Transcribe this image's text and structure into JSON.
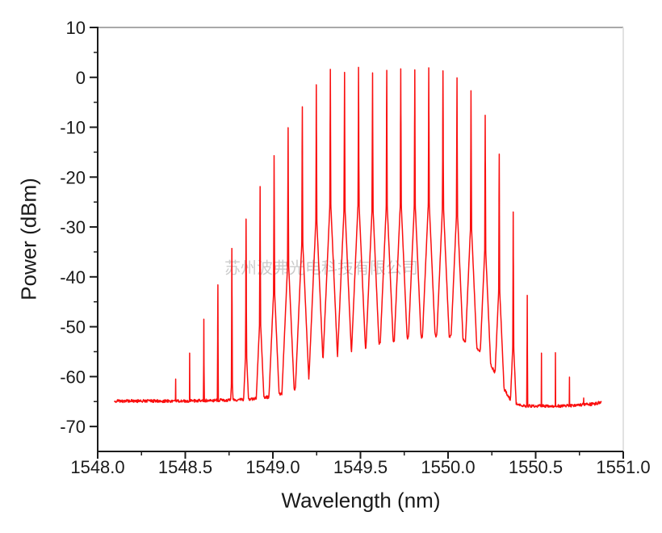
{
  "watermark": {
    "text": "苏州波弗光电科技有限公司",
    "color": "#c7c7c7"
  },
  "chart_data": {
    "type": "line",
    "title": "",
    "xlabel": "Wavelength (nm)",
    "ylabel": "Power (dBm)",
    "xlim": [
      1548.0,
      1551.0
    ],
    "ylim": [
      -75,
      10
    ],
    "x_ticks": [
      "1548.0",
      "1548.5",
      "1549.0",
      "1549.5",
      "1550.0",
      "1550.5",
      "1551.0"
    ],
    "x_minor_ticks": [
      1548.25,
      1548.75,
      1549.25,
      1549.75,
      1550.25,
      1550.75
    ],
    "y_ticks": [
      "10",
      "0",
      "-10",
      "-20",
      "-30",
      "-40",
      "-50",
      "-60",
      "-70"
    ],
    "y_minor_ticks": [
      5,
      -5,
      -15,
      -25,
      -35,
      -45,
      -55,
      -65
    ],
    "grid": false,
    "legend": false,
    "line_color": "#fa0f0f",
    "axis_color": "#1c1c1c",
    "top_border_color": "#a9a9a9",
    "right_border_color": "#e2e2e2",
    "series_description": "10 GHz optical frequency comb: ~30 narrow lines (0.08 nm spacing) rising out of an ASE pedestal over a -65 dBm noise floor",
    "comb_spacing_nm": 0.0803,
    "comb_lines": [
      [
        1548.445,
        -60.5
      ],
      [
        1548.525,
        -55.3
      ],
      [
        1548.606,
        -48.5
      ],
      [
        1548.686,
        -41.6
      ],
      [
        1548.766,
        -34.3
      ],
      [
        1548.847,
        -28.4
      ],
      [
        1548.927,
        -21.9
      ],
      [
        1549.007,
        -15.7
      ],
      [
        1549.087,
        -10.1
      ],
      [
        1549.168,
        -5.9
      ],
      [
        1549.248,
        -1.5
      ],
      [
        1549.328,
        1.6
      ],
      [
        1549.409,
        1.0
      ],
      [
        1549.489,
        2.0
      ],
      [
        1549.569,
        0.9
      ],
      [
        1549.65,
        1.4
      ],
      [
        1549.73,
        1.7
      ],
      [
        1549.81,
        1.5
      ],
      [
        1549.89,
        1.9
      ],
      [
        1549.971,
        1.3
      ],
      [
        1550.051,
        -0.1
      ],
      [
        1550.131,
        -2.7
      ],
      [
        1550.212,
        -7.6
      ],
      [
        1550.292,
        -15.4
      ],
      [
        1550.372,
        -27.0
      ],
      [
        1550.452,
        -43.7
      ],
      [
        1550.533,
        -55.3
      ],
      [
        1550.613,
        -55.2
      ],
      [
        1550.693,
        -60.1
      ],
      [
        1550.774,
        -64.3
      ]
    ],
    "pedestal": [
      [
        1548.095,
        -64.9
      ],
      [
        1548.5,
        -64.9
      ],
      [
        1548.85,
        -64.6
      ],
      [
        1549.0,
        -64.0
      ],
      [
        1549.1,
        -62.9
      ],
      [
        1549.2,
        -61.2
      ],
      [
        1549.3,
        -58.6
      ],
      [
        1549.4,
        -56.3
      ],
      [
        1549.5,
        -54.6
      ],
      [
        1549.6,
        -53.5
      ],
      [
        1549.7,
        -52.8
      ],
      [
        1549.8,
        -52.2
      ],
      [
        1549.9,
        -51.8
      ],
      [
        1549.98,
        -51.7
      ],
      [
        1550.05,
        -52.1
      ],
      [
        1550.12,
        -53.1
      ],
      [
        1550.18,
        -54.7
      ],
      [
        1550.24,
        -57.4
      ],
      [
        1550.3,
        -61.3
      ],
      [
        1550.36,
        -64.9
      ],
      [
        1550.42,
        -65.9
      ],
      [
        1550.65,
        -65.9
      ],
      [
        1550.83,
        -65.5
      ],
      [
        1550.875,
        -65.1
      ]
    ],
    "noise_db": 0.3,
    "trace_range_nm": [
      1548.095,
      1550.875
    ]
  }
}
